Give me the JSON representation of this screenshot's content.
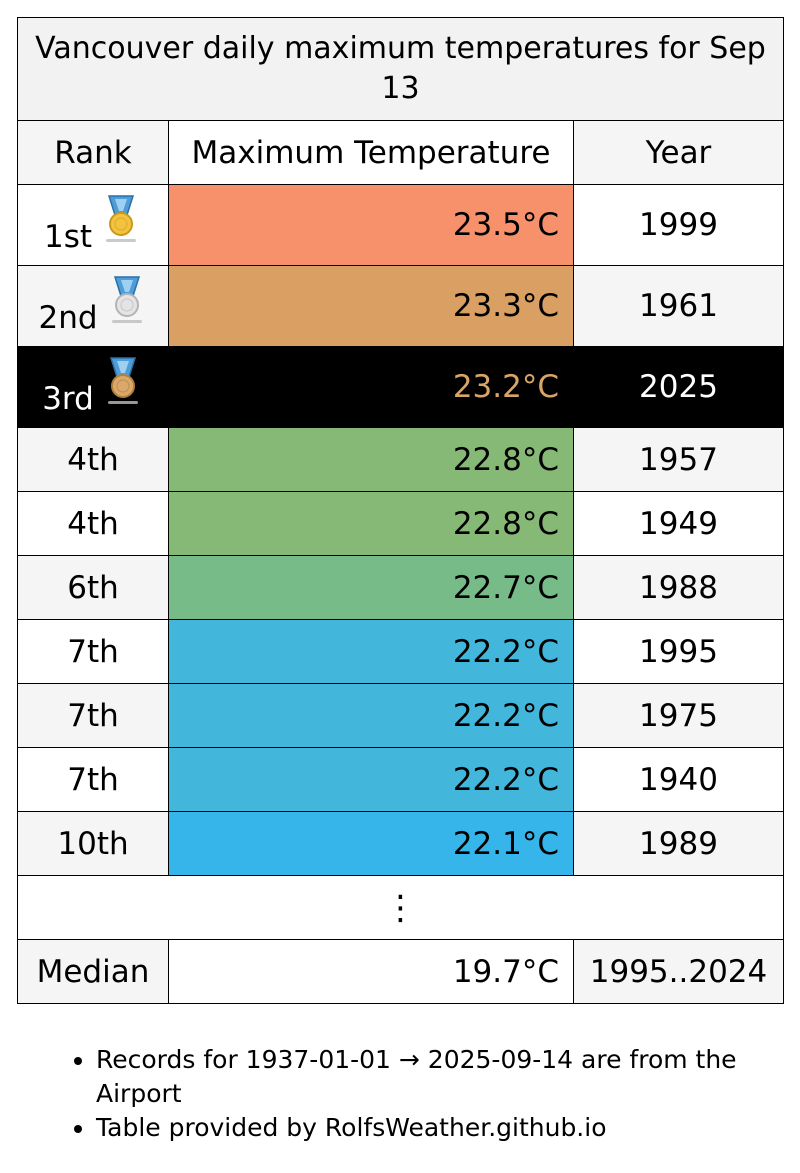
{
  "table": {
    "title": "Vancouver daily maximum temperatures for Sep 13",
    "headers": {
      "rank": "Rank",
      "temp": "Maximum Temperature",
      "year": "Year"
    },
    "rows": [
      {
        "rank": "1st",
        "temp": "23.5°C",
        "year": "1999",
        "medal": "gold",
        "color": "#f6916c",
        "current": false
      },
      {
        "rank": "2nd",
        "temp": "23.3°C",
        "year": "1961",
        "medal": "silver",
        "color": "#daa063",
        "current": false
      },
      {
        "rank": "3rd",
        "temp": "23.2°C",
        "year": "2025",
        "medal": "bronze",
        "color": "#000000",
        "current": true
      },
      {
        "rank": "4th",
        "temp": "22.8°C",
        "year": "1957",
        "medal": "",
        "color": "#86b975",
        "current": false
      },
      {
        "rank": "4th",
        "temp": "22.8°C",
        "year": "1949",
        "medal": "",
        "color": "#86b975",
        "current": false
      },
      {
        "rank": "6th",
        "temp": "22.7°C",
        "year": "1988",
        "medal": "",
        "color": "#76bb88",
        "current": false
      },
      {
        "rank": "7th",
        "temp": "22.2°C",
        "year": "1995",
        "medal": "",
        "color": "#42b7db",
        "current": false
      },
      {
        "rank": "7th",
        "temp": "22.2°C",
        "year": "1975",
        "medal": "",
        "color": "#42b7db",
        "current": false
      },
      {
        "rank": "7th",
        "temp": "22.2°C",
        "year": "1940",
        "medal": "",
        "color": "#42b7db",
        "current": false
      },
      {
        "rank": "10th",
        "temp": "22.1°C",
        "year": "1989",
        "medal": "",
        "color": "#35b5ea",
        "current": false
      }
    ],
    "ellipsis": "⋮",
    "median": {
      "label": "Median",
      "temp": "19.7°C",
      "years": "1995..2024"
    }
  },
  "notes": [
    "Records for 1937-01-01 → 2025-09-14 are from the Airport",
    "Table provided by RolfsWeather.github.io"
  ],
  "colors": {
    "current_row_bg": "#000000",
    "current_row_temp_text": "#d9a566"
  }
}
